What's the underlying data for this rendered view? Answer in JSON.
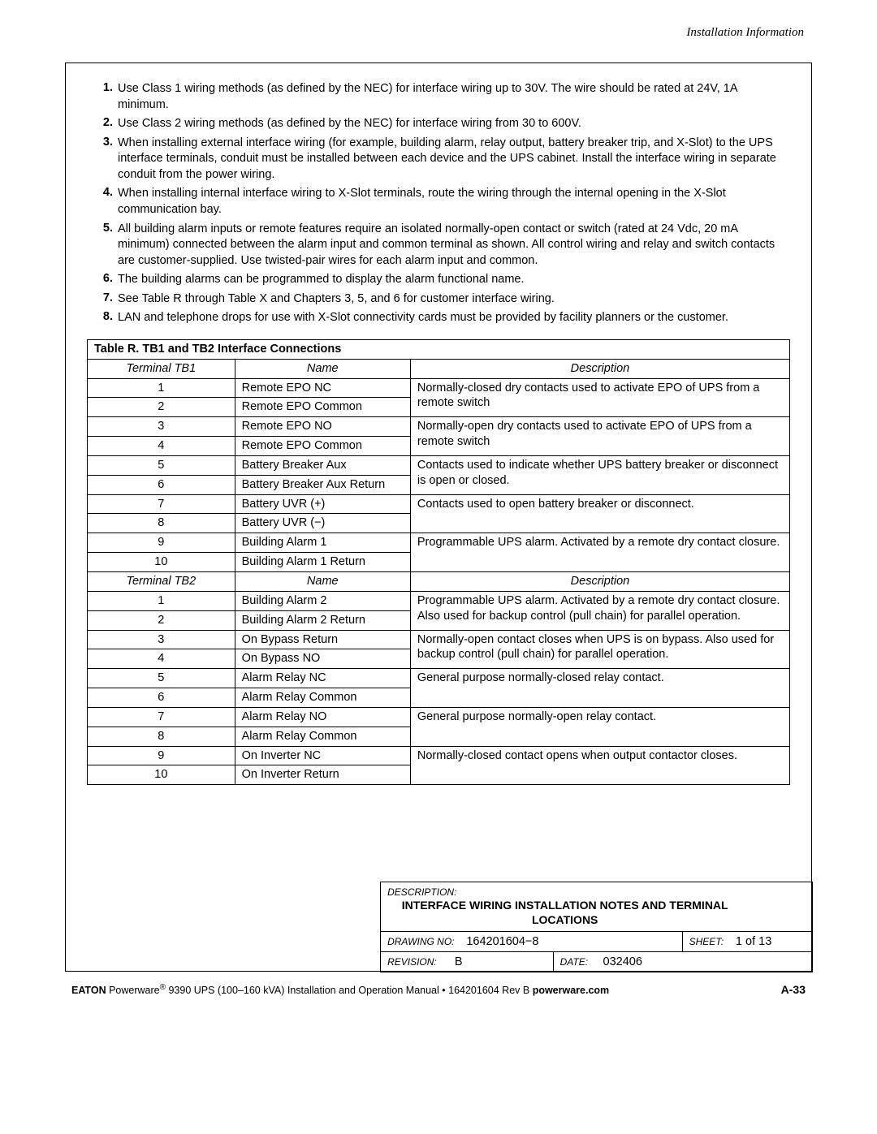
{
  "header": {
    "section_title": "Installation Information"
  },
  "notes": [
    "Use Class 1 wiring methods (as defined by the NEC) for interface wiring up to 30V. The wire should be rated at 24V, 1A minimum.",
    "Use Class 2 wiring methods (as defined by the NEC) for interface wiring from 30 to 600V.",
    "When installing external interface wiring (for example, building alarm, relay output, battery breaker trip, and X-Slot) to the UPS interface terminals, conduit must be installed between each device and the UPS cabinet. Install the interface wiring in separate conduit from the power wiring.",
    "When installing internal interface wiring to X-Slot terminals, route the wiring through the internal opening in the X-Slot communication bay.",
    "All building alarm inputs or remote features require an isolated normally-open contact or switch (rated at 24 Vdc, 20 mA minimum) connected between the alarm input and common terminal as shown. All control wiring and relay and switch contacts are customer-supplied. Use twisted-pair wires for each alarm input and common.",
    "The building alarms can be programmed to display the alarm functional name.",
    "See Table R through Table X and Chapters 3, 5, and 6 for customer interface wiring.",
    "LAN and telephone drops for use with X-Slot connectivity cards must be provided by facility planners or the customer."
  ],
  "table": {
    "title": "Table R. TB1 and TB2 Interface Connections",
    "sections": [
      {
        "header": {
          "c1": "Terminal TB1",
          "c2": "Name",
          "c3": "Description"
        },
        "rows": [
          {
            "t": "1",
            "n": "Remote EPO NC",
            "d": "Normally-closed dry contacts used to activate EPO of UPS from a remote switch",
            "span": 2
          },
          {
            "t": "2",
            "n": "Remote EPO Common"
          },
          {
            "t": "3",
            "n": "Remote EPO NO",
            "d": "Normally-open dry contacts used to activate EPO of UPS from a remote switch",
            "span": 2
          },
          {
            "t": "4",
            "n": "Remote EPO Common"
          },
          {
            "t": "5",
            "n": "Battery Breaker Aux",
            "d": "Contacts used to indicate whether UPS battery breaker or disconnect is open or closed.",
            "span": 2
          },
          {
            "t": "6",
            "n": "Battery Breaker Aux Return"
          },
          {
            "t": "7",
            "n": "Battery UVR (+)",
            "d": "Contacts used to open battery breaker or disconnect.",
            "span": 2
          },
          {
            "t": "8",
            "n": "Battery UVR (−)"
          },
          {
            "t": "9",
            "n": "Building Alarm 1",
            "d": "Programmable UPS alarm. Activated by a remote dry contact closure.",
            "span": 2
          },
          {
            "t": "10",
            "n": "Building Alarm 1 Return"
          }
        ]
      },
      {
        "header": {
          "c1": "Terminal TB2",
          "c2": "Name",
          "c3": "Description"
        },
        "rows": [
          {
            "t": "1",
            "n": "Building Alarm 2",
            "d": "Programmable UPS alarm. Activated by a remote dry contact closure.  Also used for backup control (pull chain) for parallel operation.",
            "span": 2
          },
          {
            "t": "2",
            "n": "Building Alarm 2 Return"
          },
          {
            "t": "3",
            "n": "On Bypass Return",
            "d": "Normally-open contact closes when UPS is on bypass. Also used for backup control (pull chain) for parallel operation.",
            "span": 2
          },
          {
            "t": "4",
            "n": "On Bypass NO"
          },
          {
            "t": "5",
            "n": "Alarm Relay NC",
            "d": "General purpose normally-closed relay contact.",
            "span": 2
          },
          {
            "t": "6",
            "n": "Alarm Relay Common"
          },
          {
            "t": "7",
            "n": "Alarm Relay NO",
            "d": "General purpose normally-open relay contact.",
            "span": 2
          },
          {
            "t": "8",
            "n": "Alarm Relay Common"
          },
          {
            "t": "9",
            "n": "On Inverter NC",
            "d": "Normally-closed contact opens when output contactor closes.",
            "span": 2
          },
          {
            "t": "10",
            "n": "On Inverter Return"
          }
        ]
      }
    ]
  },
  "titleblock": {
    "description_label": "DESCRIPTION:",
    "description_value": "INTERFACE WIRING INSTALLATION NOTES AND TERMINAL LOCATIONS",
    "drawing_no_label": "DRAWING NO:",
    "drawing_no_value": "164201604−8",
    "sheet_label": "SHEET:",
    "sheet_value": "1 of 13",
    "revision_label": "REVISION:",
    "revision_value": "B",
    "date_label": "DATE:",
    "date_value": "032406"
  },
  "footer": {
    "brand": "EATON",
    "product": "Powerware",
    "reg": "®",
    "model": " 9390 UPS (100–160 kVA) Installation and Operation Manual ",
    "docsep": "•",
    "docnum": " 164201604 Rev B ",
    "site": "powerware.com",
    "page": "A-33"
  }
}
